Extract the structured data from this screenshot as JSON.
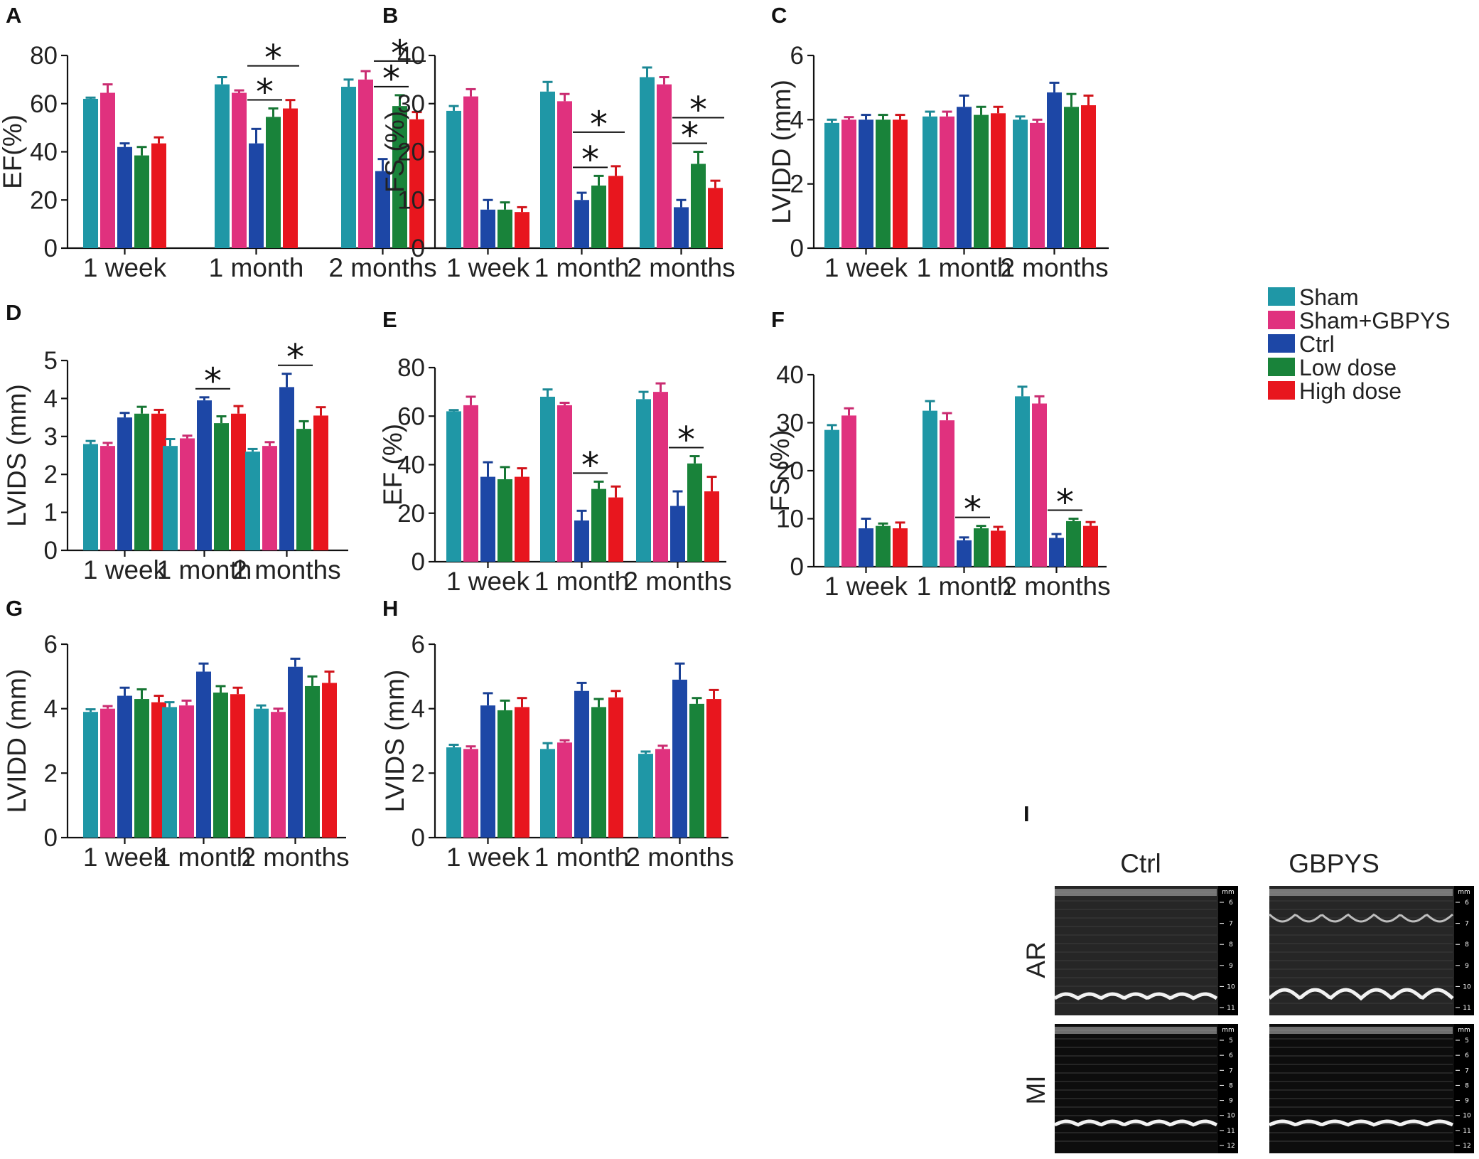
{
  "figure": {
    "groups": [
      "Sham",
      "Sham+GBPYS",
      "Ctrl",
      "Low dose",
      "High dose"
    ],
    "colors": [
      "#1f97a6",
      "#e0317e",
      "#1d47a6",
      "#19833a",
      "#e8161e"
    ]
  },
  "legend": {
    "items": [
      {
        "label": "Sham",
        "color": "#1f97a6"
      },
      {
        "label": "Sham+GBPYS",
        "color": "#e0317e"
      },
      {
        "label": "Ctrl",
        "color": "#1d47a6"
      },
      {
        "label": "Low dose",
        "color": "#19833a"
      },
      {
        "label": "High dose",
        "color": "#e8161e"
      }
    ]
  },
  "chart_data": [
    {
      "panel": "A",
      "type": "bar",
      "ylabel": "EF(%)",
      "ylim": [
        0,
        80
      ],
      "yticks": [
        0,
        20,
        40,
        60,
        80
      ],
      "categories": [
        "1 week",
        "1 month",
        "2 months"
      ],
      "series": [
        {
          "name": "Sham",
          "values": [
            62,
            68,
            67
          ],
          "errors": [
            0.5,
            3,
            3
          ]
        },
        {
          "name": "Sham+GBPYS",
          "values": [
            64.5,
            64.5,
            70
          ],
          "errors": [
            3.5,
            1,
            3.5
          ]
        },
        {
          "name": "Ctrl",
          "values": [
            42,
            43.5,
            32
          ],
          "errors": [
            1.5,
            6,
            5
          ]
        },
        {
          "name": "Low dose",
          "values": [
            38.5,
            54.5,
            59
          ],
          "errors": [
            3.5,
            3.5,
            4.5
          ]
        },
        {
          "name": "High dose",
          "values": [
            43.5,
            58,
            53.5
          ],
          "errors": [
            2.5,
            3.5,
            3
          ]
        }
      ],
      "significance": [
        {
          "category": 1,
          "from": 2,
          "to": 3,
          "level": 0,
          "label": "*"
        },
        {
          "category": 1,
          "from": 2,
          "to": 4,
          "level": 1,
          "label": "*"
        },
        {
          "category": 2,
          "from": 2,
          "to": 3,
          "level": 0,
          "label": "*"
        },
        {
          "category": 2,
          "from": 2,
          "to": 4,
          "level": 1,
          "label": "*"
        }
      ]
    },
    {
      "panel": "B",
      "type": "bar",
      "ylabel": "FS (%)",
      "ylim": [
        0,
        40
      ],
      "yticks": [
        0,
        10,
        20,
        30,
        40
      ],
      "categories": [
        "1 week",
        "1 month",
        "2 months"
      ],
      "series": [
        {
          "name": "Sham",
          "values": [
            28.5,
            32.5,
            35.5
          ],
          "errors": [
            1,
            2,
            2
          ]
        },
        {
          "name": "Sham+GBPYS",
          "values": [
            31.5,
            30.5,
            34
          ],
          "errors": [
            1.5,
            1.5,
            1.5
          ]
        },
        {
          "name": "Ctrl",
          "values": [
            8,
            10,
            8.5
          ],
          "errors": [
            2,
            1.5,
            1.5
          ]
        },
        {
          "name": "Low dose",
          "values": [
            8,
            13,
            17.5
          ],
          "errors": [
            1.5,
            2,
            2.5
          ]
        },
        {
          "name": "High dose",
          "values": [
            7.5,
            15,
            12.5
          ],
          "errors": [
            1,
            2,
            1.5
          ]
        }
      ],
      "significance": [
        {
          "category": 1,
          "from": 2,
          "to": 3,
          "level": 0,
          "label": "*"
        },
        {
          "category": 1,
          "from": 2,
          "to": 4,
          "level": 1,
          "label": "*"
        },
        {
          "category": 2,
          "from": 2,
          "to": 3,
          "level": 0,
          "label": "*"
        },
        {
          "category": 2,
          "from": 2,
          "to": 4,
          "level": 1,
          "label": "*"
        }
      ]
    },
    {
      "panel": "C",
      "type": "bar",
      "ylabel": "LVIDD (mm)",
      "ylim": [
        0,
        6
      ],
      "yticks": [
        0,
        2,
        4,
        6
      ],
      "categories": [
        "1 week",
        "1 month",
        "2 months"
      ],
      "series": [
        {
          "name": "Sham",
          "values": [
            3.9,
            4.1,
            4.0
          ],
          "errors": [
            0.1,
            0.15,
            0.1
          ]
        },
        {
          "name": "Sham+GBPYS",
          "values": [
            4.0,
            4.1,
            3.9
          ],
          "errors": [
            0.08,
            0.15,
            0.1
          ]
        },
        {
          "name": "Ctrl",
          "values": [
            4.0,
            4.4,
            4.85
          ],
          "errors": [
            0.15,
            0.35,
            0.3
          ]
        },
        {
          "name": "Low dose",
          "values": [
            4.0,
            4.15,
            4.4
          ],
          "errors": [
            0.15,
            0.25,
            0.4
          ]
        },
        {
          "name": "High dose",
          "values": [
            4.0,
            4.2,
            4.45
          ],
          "errors": [
            0.15,
            0.2,
            0.3
          ]
        }
      ],
      "significance": []
    },
    {
      "panel": "D",
      "type": "bar",
      "ylabel": "LVIDS (mm)",
      "ylim": [
        0,
        5
      ],
      "yticks": [
        0,
        1,
        2,
        3,
        4,
        5
      ],
      "categories": [
        "1 week",
        "1 month",
        "2 months"
      ],
      "series": [
        {
          "name": "Sham",
          "values": [
            2.8,
            2.75,
            2.6
          ],
          "errors": [
            0.08,
            0.18,
            0.07
          ]
        },
        {
          "name": "Sham+GBPYS",
          "values": [
            2.75,
            2.95,
            2.75
          ],
          "errors": [
            0.08,
            0.07,
            0.1
          ]
        },
        {
          "name": "Ctrl",
          "values": [
            3.5,
            3.95,
            4.3
          ],
          "errors": [
            0.12,
            0.08,
            0.35
          ]
        },
        {
          "name": "Low dose",
          "values": [
            3.6,
            3.35,
            3.2
          ],
          "errors": [
            0.18,
            0.18,
            0.2
          ]
        },
        {
          "name": "High dose",
          "values": [
            3.6,
            3.6,
            3.55
          ],
          "errors": [
            0.1,
            0.2,
            0.22
          ]
        }
      ],
      "significance": [
        {
          "category": 1,
          "from": 2,
          "to": 3,
          "level": 0,
          "label": "*"
        },
        {
          "category": 2,
          "from": 2,
          "to": 3,
          "level": 0,
          "label": "*"
        }
      ]
    },
    {
      "panel": "E",
      "type": "bar",
      "ylabel": "EF (%)",
      "ylim": [
        0,
        80
      ],
      "yticks": [
        0,
        20,
        40,
        60,
        80
      ],
      "categories": [
        "1 week",
        "1 month",
        "2 months"
      ],
      "series": [
        {
          "name": "Sham",
          "values": [
            62,
            68,
            67
          ],
          "errors": [
            0.5,
            3,
            3
          ]
        },
        {
          "name": "Sham+GBPYS",
          "values": [
            64.5,
            64.5,
            70
          ],
          "errors": [
            3.5,
            1,
            3.5
          ]
        },
        {
          "name": "Ctrl",
          "values": [
            35,
            17,
            23
          ],
          "errors": [
            6,
            4,
            6
          ]
        },
        {
          "name": "Low dose",
          "values": [
            34,
            30,
            40.5
          ],
          "errors": [
            5,
            3,
            3
          ]
        },
        {
          "name": "High dose",
          "values": [
            35,
            26.5,
            29
          ],
          "errors": [
            3.5,
            4.5,
            6
          ]
        }
      ],
      "significance": [
        {
          "category": 1,
          "from": 2,
          "to": 3,
          "level": 0,
          "label": "*"
        },
        {
          "category": 2,
          "from": 2,
          "to": 3,
          "level": 0,
          "label": "*"
        }
      ]
    },
    {
      "panel": "F",
      "type": "bar",
      "ylabel": "FS (%)",
      "ylim": [
        0,
        40
      ],
      "yticks": [
        0,
        10,
        20,
        30,
        40
      ],
      "categories": [
        "1 week",
        "1 month",
        "2 months"
      ],
      "series": [
        {
          "name": "Sham",
          "values": [
            28.5,
            32.5,
            35.5
          ],
          "errors": [
            1,
            2,
            2
          ]
        },
        {
          "name": "Sham+GBPYS",
          "values": [
            31.5,
            30.5,
            34
          ],
          "errors": [
            1.5,
            1.5,
            1.5
          ]
        },
        {
          "name": "Ctrl",
          "values": [
            8,
            5.5,
            6
          ],
          "errors": [
            2,
            0.6,
            0.8
          ]
        },
        {
          "name": "Low dose",
          "values": [
            8.5,
            8,
            9.5
          ],
          "errors": [
            0.5,
            0.5,
            0.5
          ]
        },
        {
          "name": "High dose",
          "values": [
            8,
            7.5,
            8.5
          ],
          "errors": [
            1.2,
            0.8,
            0.8
          ]
        }
      ],
      "significance": [
        {
          "category": 1,
          "from": 2,
          "to": 3,
          "level": 0,
          "label": "*"
        },
        {
          "category": 2,
          "from": 2,
          "to": 3,
          "level": 0,
          "label": "*"
        }
      ]
    },
    {
      "panel": "G",
      "type": "bar",
      "ylabel": "LVIDD (mm)",
      "ylim": [
        0,
        6
      ],
      "yticks": [
        0,
        2,
        4,
        6
      ],
      "categories": [
        "1 week",
        "1 month",
        "2 months"
      ],
      "series": [
        {
          "name": "Sham",
          "values": [
            3.9,
            4.05,
            4.0
          ],
          "errors": [
            0.08,
            0.15,
            0.1
          ]
        },
        {
          "name": "Sham+GBPYS",
          "values": [
            4.0,
            4.1,
            3.9
          ],
          "errors": [
            0.08,
            0.15,
            0.1
          ]
        },
        {
          "name": "Ctrl",
          "values": [
            4.4,
            5.15,
            5.3
          ],
          "errors": [
            0.25,
            0.25,
            0.25
          ]
        },
        {
          "name": "Low dose",
          "values": [
            4.3,
            4.5,
            4.7
          ],
          "errors": [
            0.3,
            0.2,
            0.3
          ]
        },
        {
          "name": "High dose",
          "values": [
            4.2,
            4.45,
            4.8
          ],
          "errors": [
            0.2,
            0.2,
            0.35
          ]
        }
      ],
      "significance": []
    },
    {
      "panel": "H",
      "type": "bar",
      "ylabel": "LVIDS (mm)",
      "ylim": [
        0,
        6
      ],
      "yticks": [
        0,
        2,
        4,
        6
      ],
      "categories": [
        "1 week",
        "1 month",
        "2 months"
      ],
      "series": [
        {
          "name": "Sham",
          "values": [
            2.8,
            2.75,
            2.6
          ],
          "errors": [
            0.08,
            0.18,
            0.07
          ]
        },
        {
          "name": "Sham+GBPYS",
          "values": [
            2.75,
            2.95,
            2.75
          ],
          "errors": [
            0.08,
            0.07,
            0.1
          ]
        },
        {
          "name": "Ctrl",
          "values": [
            4.1,
            4.55,
            4.9
          ],
          "errors": [
            0.38,
            0.25,
            0.5
          ]
        },
        {
          "name": "Low dose",
          "values": [
            3.95,
            4.05,
            4.15
          ],
          "errors": [
            0.3,
            0.25,
            0.18
          ]
        },
        {
          "name": "High dose",
          "values": [
            4.05,
            4.35,
            4.3
          ],
          "errors": [
            0.28,
            0.2,
            0.28
          ]
        }
      ],
      "significance": []
    }
  ],
  "panel_i": {
    "letter": "I",
    "columns": [
      "Ctrl",
      "GBPYS"
    ],
    "rows": [
      "AR",
      "MI"
    ],
    "scale_unit": "mm",
    "scale_ticks": [
      [
        "6",
        "7",
        "8",
        "9",
        "10",
        "11"
      ],
      [
        "5",
        "6",
        "7",
        "8",
        "9",
        "10",
        "11",
        "12"
      ]
    ]
  }
}
